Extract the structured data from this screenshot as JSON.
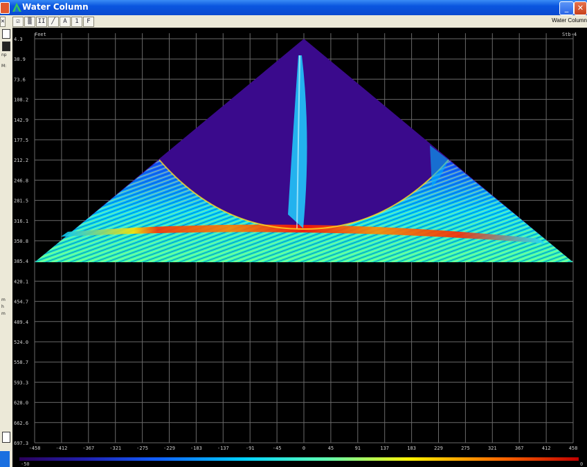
{
  "window": {
    "title": "Water Column"
  },
  "toolbar": {
    "buttons": [
      "✕",
      "☑",
      "▒",
      "II",
      "╱",
      "A",
      "1",
      "F"
    ],
    "right_label": "Water Column"
  },
  "left_strip": {
    "labels": [
      "np",
      "M:",
      "m",
      "h",
      "m"
    ]
  },
  "plot": {
    "unit_label": "Feet",
    "side_label": "Stb-4",
    "y_ticks": [
      "4.3",
      "38.9",
      "73.6",
      "108.2",
      "142.9",
      "177.5",
      "212.2",
      "246.8",
      "281.5",
      "316.1",
      "350.8",
      "385.4",
      "420.1",
      "454.7",
      "489.4",
      "524.0",
      "558.7",
      "593.3",
      "628.0",
      "662.6",
      "697.3"
    ],
    "x_ticks": [
      "-458",
      "-412",
      "-367",
      "-321",
      "-275",
      "-229",
      "-183",
      "-137",
      "-91",
      "-45",
      "0",
      "45",
      "91",
      "137",
      "183",
      "229",
      "275",
      "321",
      "367",
      "412",
      "458"
    ]
  },
  "colorbar": {
    "min": "-50",
    "max": "0"
  },
  "colors": {
    "background": "#000000",
    "grid": "#6a6a6a",
    "water": "#3a0a8c",
    "titlebar": "#0a55df"
  }
}
